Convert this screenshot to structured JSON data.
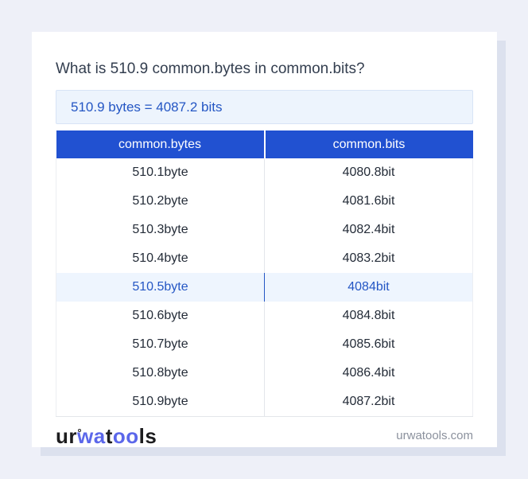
{
  "page": {
    "title": "What is 510.9 common.bytes in common.bits?",
    "result_text": "510.9 bytes = 4087.2 bits"
  },
  "table": {
    "headers": [
      "common.bytes",
      "common.bits"
    ],
    "rows": [
      {
        "bytes": "510.1byte",
        "bits": "4080.8bit",
        "highlight": false
      },
      {
        "bytes": "510.2byte",
        "bits": "4081.6bit",
        "highlight": false
      },
      {
        "bytes": "510.3byte",
        "bits": "4082.4bit",
        "highlight": false
      },
      {
        "bytes": "510.4byte",
        "bits": "4083.2bit",
        "highlight": false
      },
      {
        "bytes": "510.5byte",
        "bits": "4084bit",
        "highlight": true
      },
      {
        "bytes": "510.6byte",
        "bits": "4084.8bit",
        "highlight": false
      },
      {
        "bytes": "510.7byte",
        "bits": "4085.6bit",
        "highlight": false
      },
      {
        "bytes": "510.8byte",
        "bits": "4086.4bit",
        "highlight": false
      },
      {
        "bytes": "510.9byte",
        "bits": "4087.2bit",
        "highlight": false
      }
    ]
  },
  "footer": {
    "logo_parts": {
      "p1": "ur",
      "p2": "wa",
      "p3": "t",
      "p4": "oo",
      "p5": "ls"
    },
    "site": "urwatools.com"
  },
  "colors": {
    "page_bg": "#eef0f8",
    "header_blue": "#2151d1",
    "link_blue": "#2456c4",
    "result_bg": "#edf4fd",
    "highlight_bg": "#eef5fe",
    "logo_blue": "#5b67ea"
  }
}
